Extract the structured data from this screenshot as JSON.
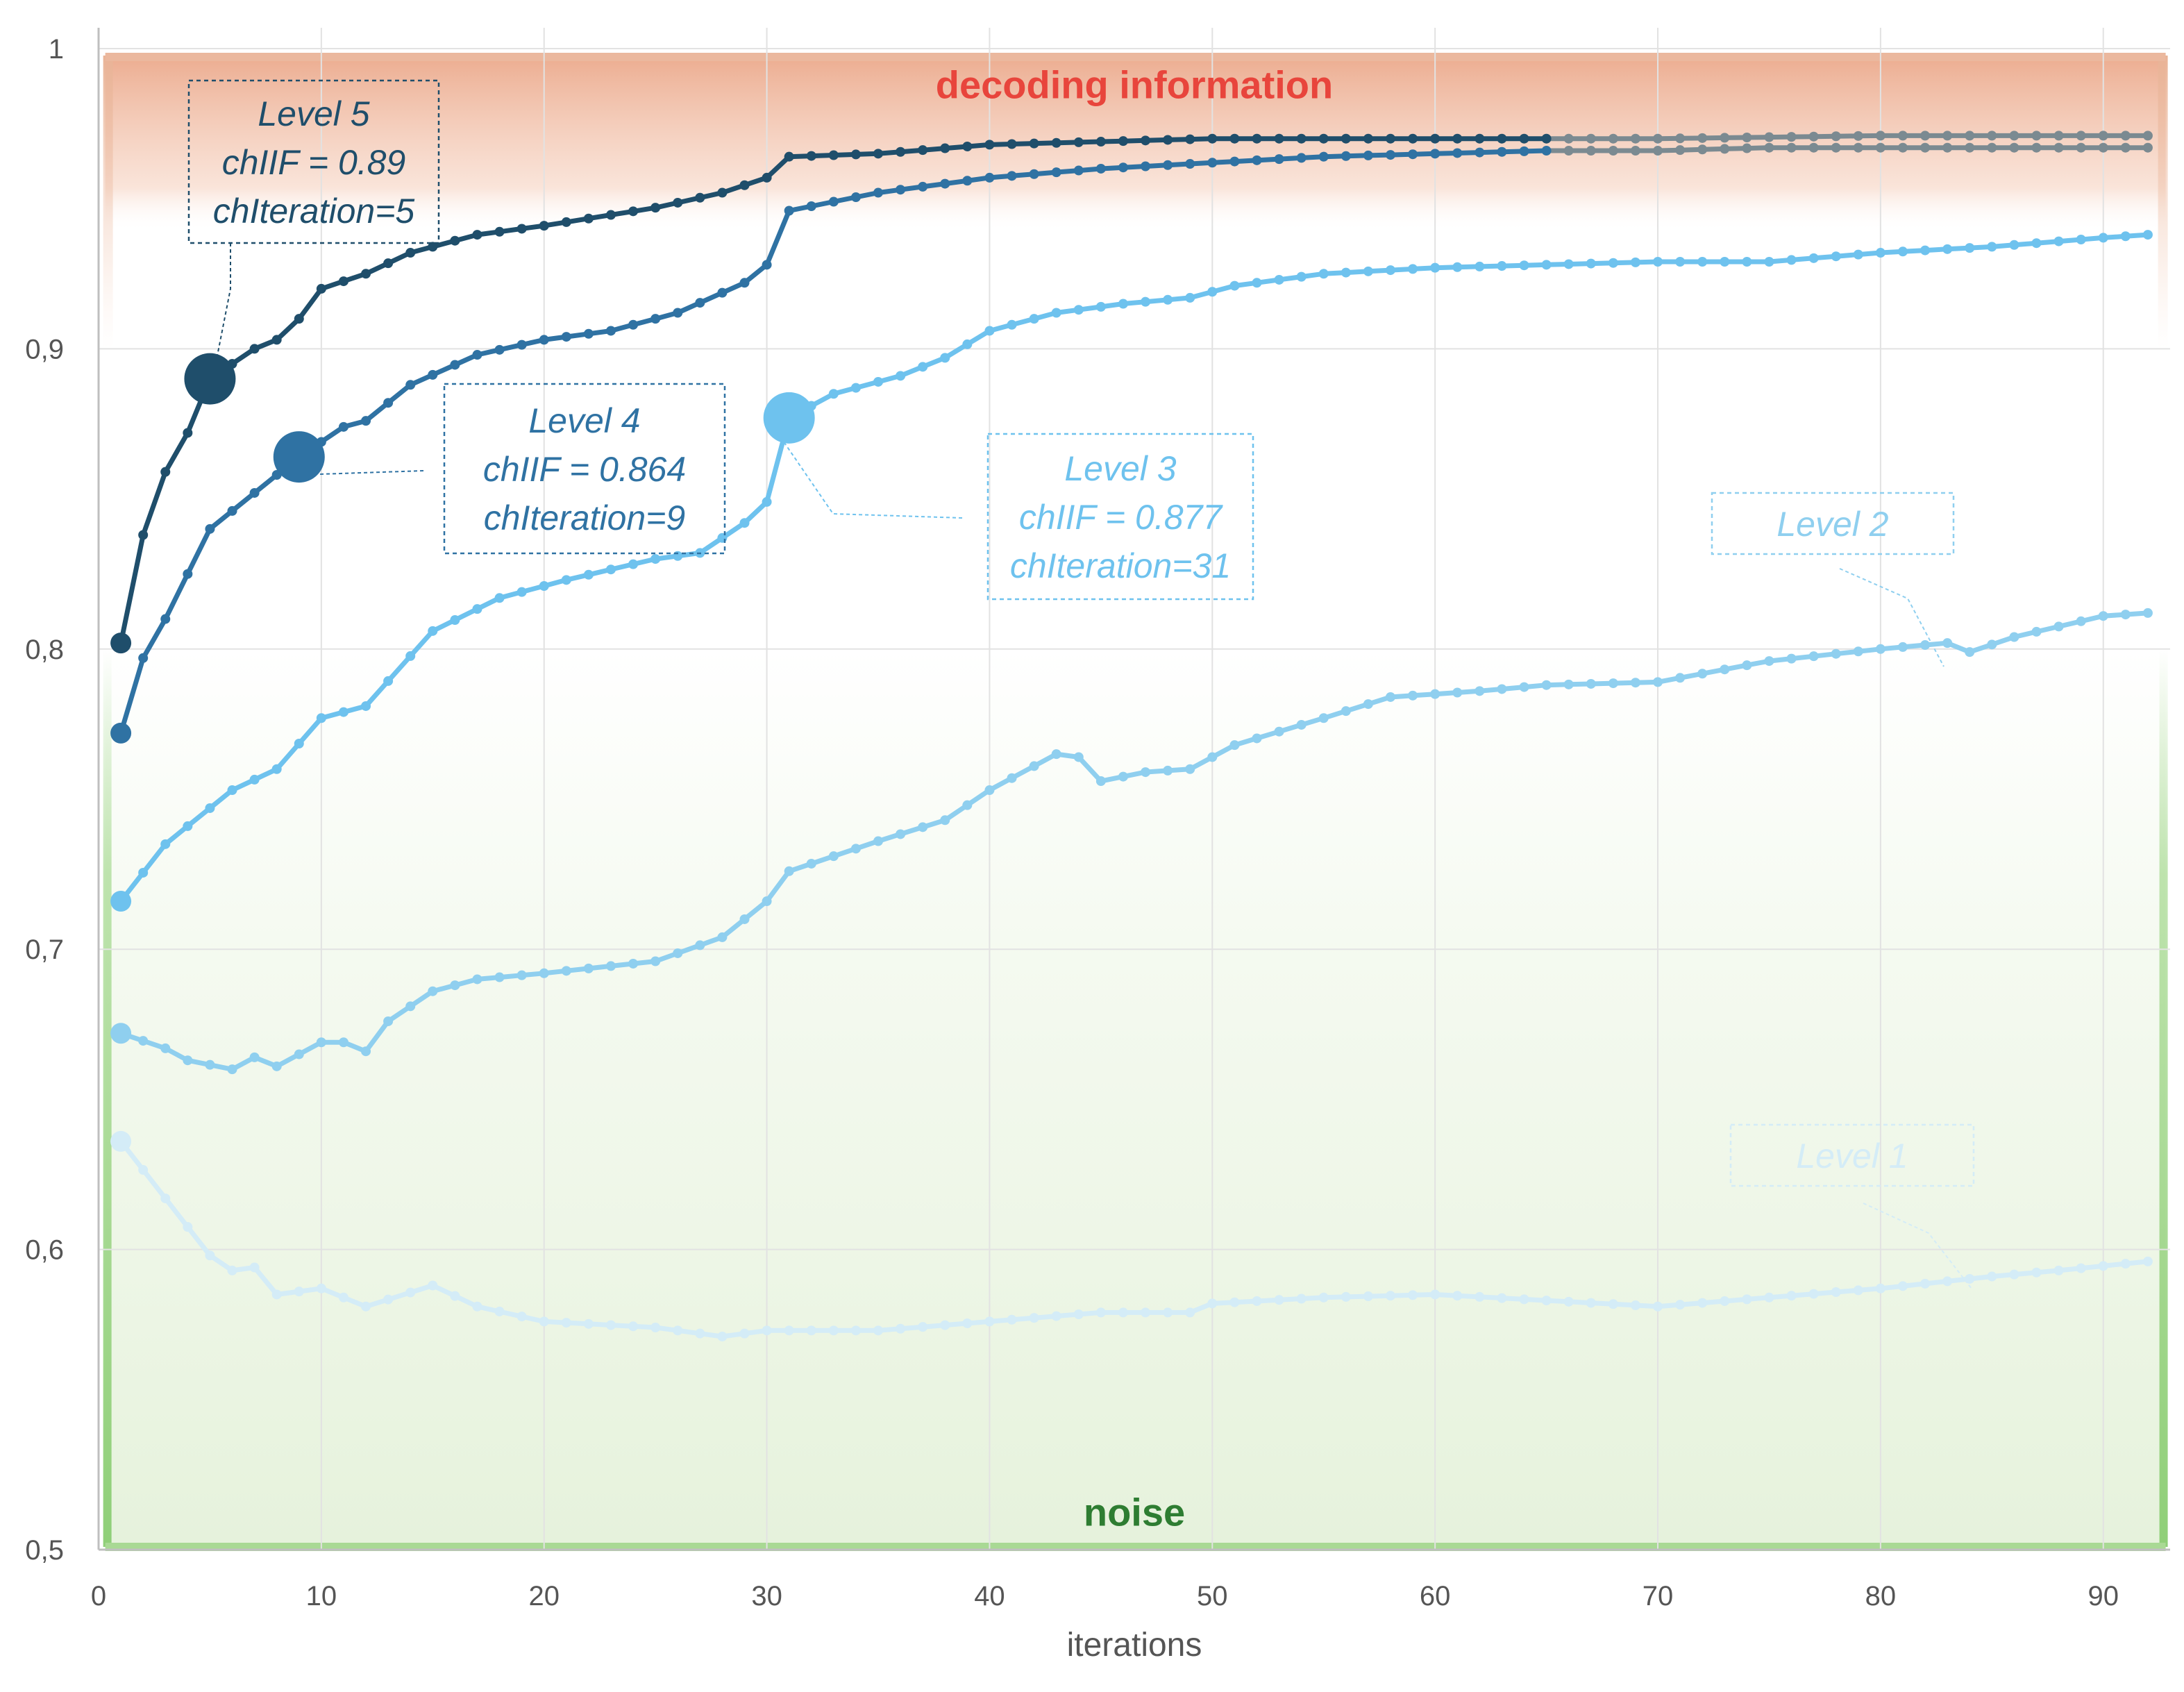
{
  "chart_data": {
    "type": "line",
    "xlabel": "iterations",
    "ylabel": "",
    "xlim": [
      0,
      93
    ],
    "ylim": [
      0.5,
      1.0
    ],
    "x_ticks": [
      0,
      10,
      20,
      30,
      40,
      50,
      60,
      70,
      80,
      90
    ],
    "x_tick_labels": [
      "0",
      "10",
      "20",
      "30",
      "40",
      "50",
      "60",
      "70",
      "80",
      "90"
    ],
    "y_ticks": [
      0.5,
      0.6,
      0.7,
      0.8,
      0.9,
      1.0
    ],
    "y_tick_labels": [
      "0,5",
      "0,6",
      "0,7",
      "0,8",
      "0,9",
      "1"
    ],
    "grid": true,
    "regions": [
      {
        "name": "decoding information",
        "y_from": 0.9,
        "y_to": 1.0,
        "color": "#E8453C"
      },
      {
        "name": "noise",
        "y_from": 0.5,
        "y_to": 0.8,
        "color": "#2E7D32"
      }
    ],
    "series": [
      {
        "name": "Level 1",
        "color": "#D4ECF7",
        "keypoints": [
          [
            1,
            0.636
          ],
          [
            3,
            0.617
          ],
          [
            5,
            0.598
          ],
          [
            6,
            0.593
          ],
          [
            7,
            0.594
          ],
          [
            8,
            0.585
          ],
          [
            10,
            0.587
          ],
          [
            12,
            0.581
          ],
          [
            15,
            0.588
          ],
          [
            17,
            0.581
          ],
          [
            20,
            0.576
          ],
          [
            25,
            0.574
          ],
          [
            28,
            0.571
          ],
          [
            30,
            0.573
          ],
          [
            35,
            0.573
          ],
          [
            40,
            0.576
          ],
          [
            45,
            0.579
          ],
          [
            49,
            0.579
          ],
          [
            50,
            0.582
          ],
          [
            55,
            0.584
          ],
          [
            60,
            0.585
          ],
          [
            65,
            0.583
          ],
          [
            70,
            0.581
          ],
          [
            75,
            0.584
          ],
          [
            80,
            0.587
          ],
          [
            85,
            0.591
          ],
          [
            88,
            0.593
          ],
          [
            92,
            0.596
          ]
        ]
      },
      {
        "name": "Level 2",
        "color": "#8FCFEF",
        "keypoints": [
          [
            1,
            0.672
          ],
          [
            3,
            0.667
          ],
          [
            4,
            0.663
          ],
          [
            6,
            0.66
          ],
          [
            7,
            0.664
          ],
          [
            8,
            0.661
          ],
          [
            10,
            0.669
          ],
          [
            11,
            0.669
          ],
          [
            12,
            0.666
          ],
          [
            13,
            0.676
          ],
          [
            15,
            0.686
          ],
          [
            17,
            0.69
          ],
          [
            20,
            0.692
          ],
          [
            25,
            0.696
          ],
          [
            28,
            0.704
          ],
          [
            30,
            0.716
          ],
          [
            31,
            0.726
          ],
          [
            35,
            0.736
          ],
          [
            38,
            0.743
          ],
          [
            40,
            0.753
          ],
          [
            43,
            0.765
          ],
          [
            44,
            0.764
          ],
          [
            45,
            0.756
          ],
          [
            47,
            0.759
          ],
          [
            49,
            0.76
          ],
          [
            51,
            0.768
          ],
          [
            55,
            0.777
          ],
          [
            58,
            0.784
          ],
          [
            62,
            0.786
          ],
          [
            65,
            0.788
          ],
          [
            70,
            0.789
          ],
          [
            75,
            0.796
          ],
          [
            80,
            0.8
          ],
          [
            83,
            0.802
          ],
          [
            84,
            0.799
          ],
          [
            86,
            0.804
          ],
          [
            90,
            0.811
          ],
          [
            92,
            0.812
          ]
        ]
      },
      {
        "name": "Level 3",
        "color": "#6EC2EE",
        "keypoints": [
          [
            1,
            0.716
          ],
          [
            3,
            0.735
          ],
          [
            6,
            0.753
          ],
          [
            8,
            0.76
          ],
          [
            10,
            0.777
          ],
          [
            12,
            0.781
          ],
          [
            15,
            0.806
          ],
          [
            18,
            0.817
          ],
          [
            21,
            0.823
          ],
          [
            25,
            0.83
          ],
          [
            27,
            0.832
          ],
          [
            29,
            0.842
          ],
          [
            30,
            0.849
          ],
          [
            31,
            0.877
          ],
          [
            33,
            0.885
          ],
          [
            36,
            0.891
          ],
          [
            38,
            0.897
          ],
          [
            40,
            0.906
          ],
          [
            43,
            0.912
          ],
          [
            46,
            0.915
          ],
          [
            49,
            0.917
          ],
          [
            51,
            0.921
          ],
          [
            55,
            0.925
          ],
          [
            60,
            0.927
          ],
          [
            65,
            0.928
          ],
          [
            70,
            0.929
          ],
          [
            75,
            0.929
          ],
          [
            80,
            0.932
          ],
          [
            85,
            0.934
          ],
          [
            90,
            0.937
          ],
          [
            92,
            0.938
          ]
        ]
      },
      {
        "name": "Level 4",
        "color": "#2F72A3",
        "keypoints": [
          [
            1,
            0.772
          ],
          [
            2,
            0.797
          ],
          [
            3,
            0.81
          ],
          [
            5,
            0.84
          ],
          [
            7,
            0.852
          ],
          [
            9,
            0.864
          ],
          [
            11,
            0.874
          ],
          [
            12,
            0.876
          ],
          [
            14,
            0.888
          ],
          [
            17,
            0.898
          ],
          [
            20,
            0.903
          ],
          [
            23,
            0.906
          ],
          [
            26,
            0.912
          ],
          [
            29,
            0.922
          ],
          [
            30,
            0.928
          ],
          [
            31,
            0.946
          ],
          [
            35,
            0.952
          ],
          [
            40,
            0.957
          ],
          [
            45,
            0.96
          ],
          [
            50,
            0.962
          ],
          [
            55,
            0.964
          ],
          [
            60,
            0.965
          ],
          [
            65,
            0.966
          ],
          [
            70,
            0.966
          ],
          [
            75,
            0.967
          ],
          [
            80,
            0.967
          ],
          [
            85,
            0.967
          ],
          [
            92,
            0.967
          ]
        ]
      },
      {
        "name": "Level 5",
        "color": "#1F4E6B",
        "keypoints": [
          [
            1,
            0.802
          ],
          [
            2,
            0.838
          ],
          [
            3,
            0.859
          ],
          [
            4,
            0.872
          ],
          [
            5,
            0.89
          ],
          [
            7,
            0.9
          ],
          [
            8,
            0.903
          ],
          [
            9,
            0.91
          ],
          [
            10,
            0.92
          ],
          [
            12,
            0.925
          ],
          [
            14,
            0.932
          ],
          [
            17,
            0.938
          ],
          [
            20,
            0.941
          ],
          [
            25,
            0.947
          ],
          [
            28,
            0.952
          ],
          [
            30,
            0.957
          ],
          [
            31,
            0.964
          ],
          [
            35,
            0.965
          ],
          [
            40,
            0.968
          ],
          [
            45,
            0.969
          ],
          [
            50,
            0.97
          ],
          [
            60,
            0.97
          ],
          [
            70,
            0.97
          ],
          [
            80,
            0.971
          ],
          [
            92,
            0.971
          ]
        ]
      }
    ],
    "annotations": [
      {
        "series": "Level 5",
        "lines": [
          "Level 5",
          "chIIF = 0.89",
          "chIteration=5"
        ],
        "point": [
          5,
          0.89
        ]
      },
      {
        "series": "Level 4",
        "lines": [
          "Level 4",
          "chIIF = 0.864",
          "chIteration=9"
        ],
        "point": [
          9,
          0.864
        ]
      },
      {
        "series": "Level 3",
        "lines": [
          "Level 3",
          "chIIF = 0.877",
          "chIteration=31"
        ],
        "point": [
          31,
          0.877
        ]
      },
      {
        "series": "Level 2",
        "lines": [
          "Level 2"
        ],
        "point": [
          85,
          0.803
        ]
      },
      {
        "series": "Level 1",
        "lines": [
          "Level 1"
        ],
        "point": [
          86,
          0.592
        ]
      }
    ],
    "converged_color": "#7B8A91"
  }
}
